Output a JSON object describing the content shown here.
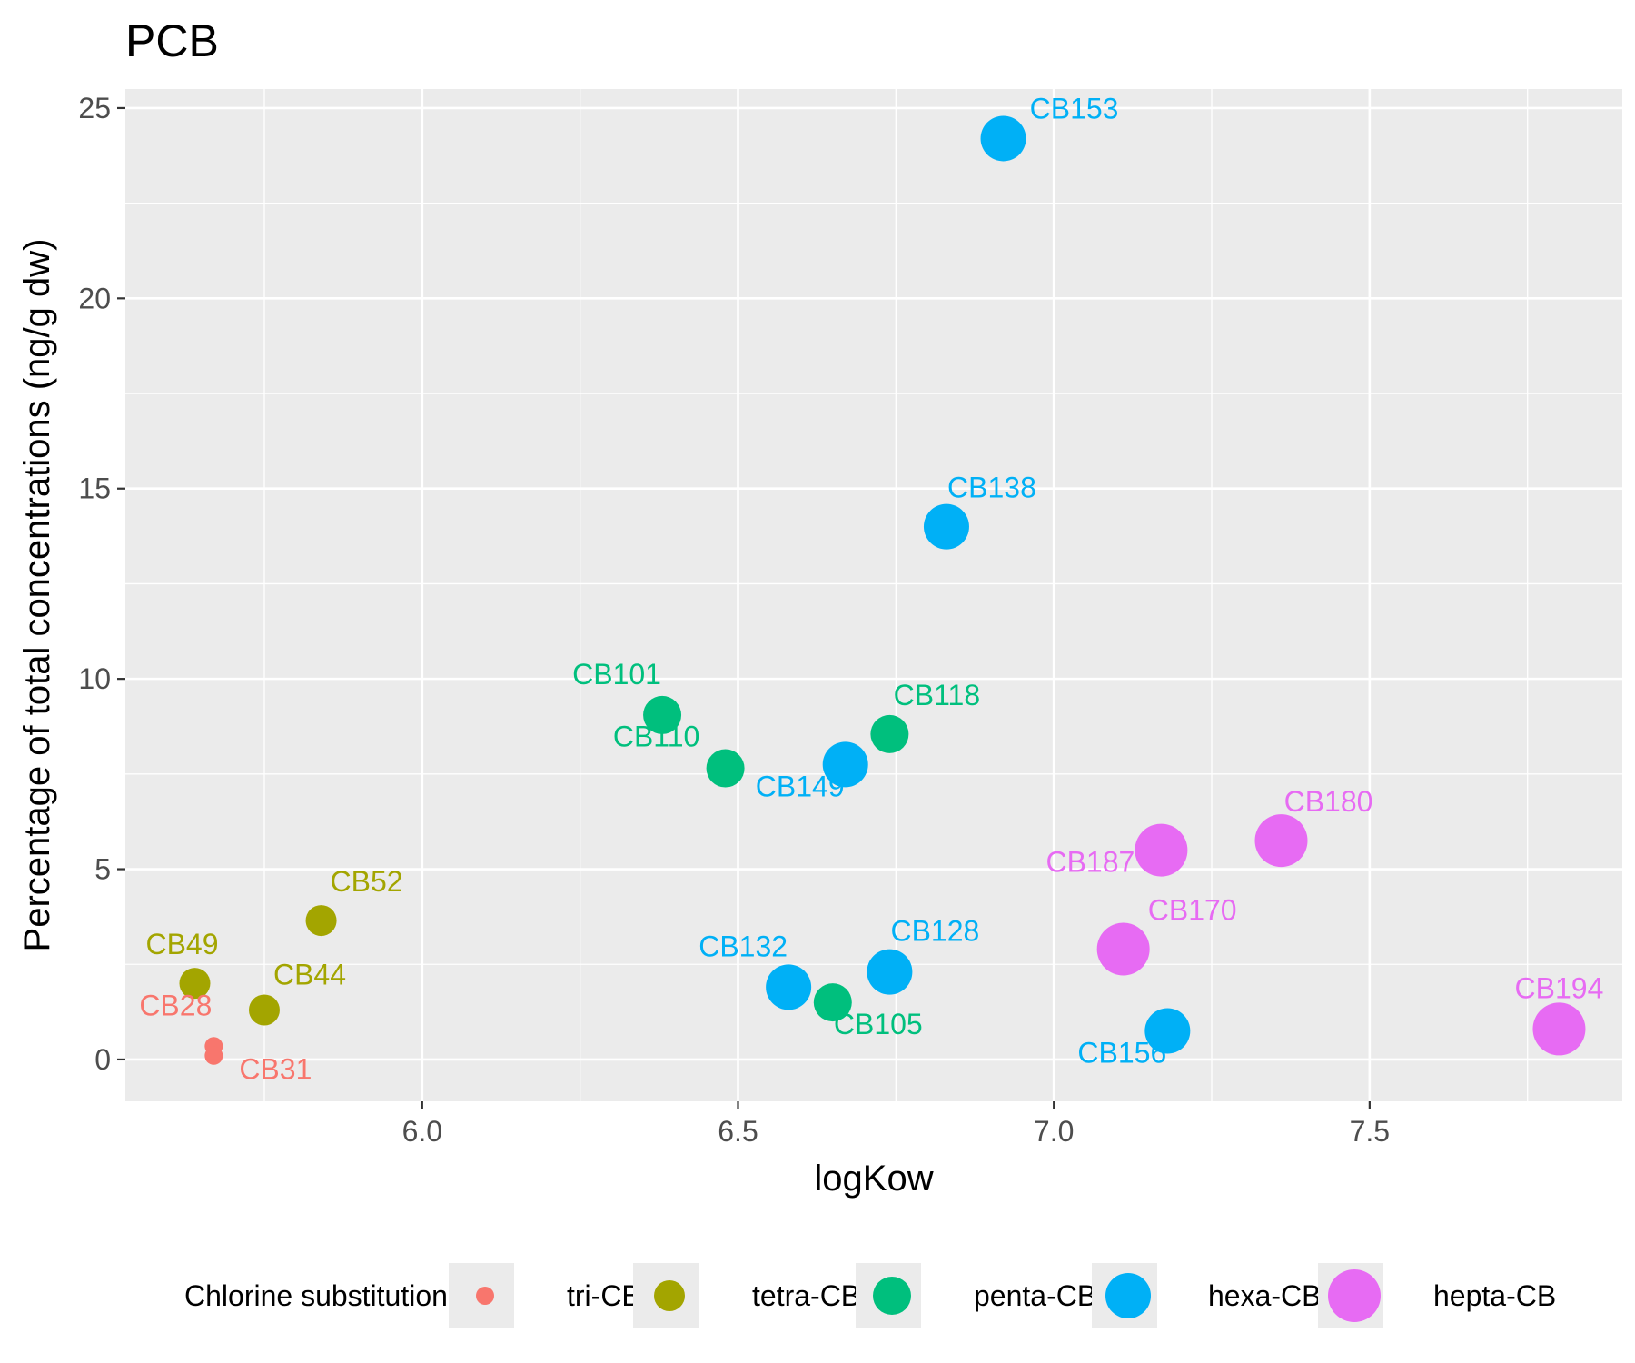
{
  "chart_data": {
    "type": "scatter",
    "title": "PCB",
    "xlabel": "logKow",
    "ylabel": "Percentage of total concentrations (ng/g dw)",
    "xlim": [
      5.53,
      7.9
    ],
    "ylim": [
      -1.1,
      25.5
    ],
    "x_ticks": [
      "6.0",
      "6.5",
      "7.0",
      "7.5"
    ],
    "y_ticks": [
      "0",
      "5",
      "10",
      "15",
      "20",
      "25"
    ],
    "grid": true,
    "legend": {
      "title": "Chlorine substitution",
      "placement": "bottom",
      "entries": [
        "tri-CB",
        "tetra-CB",
        "penta-CB",
        "hexa-CB",
        "hepta-CB"
      ]
    },
    "series": [
      {
        "name": "tri-CB",
        "color": "#F8766D",
        "points": [
          {
            "label": "CB28",
            "x": 5.67,
            "y": 0.35
          },
          {
            "label": "CB31",
            "x": 5.67,
            "y": 0.1
          }
        ]
      },
      {
        "name": "tetra-CB",
        "color": "#A3A500",
        "points": [
          {
            "label": "CB49",
            "x": 5.64,
            "y": 2.0
          },
          {
            "label": "CB44",
            "x": 5.75,
            "y": 1.3
          },
          {
            "label": "CB52",
            "x": 5.84,
            "y": 3.65
          }
        ]
      },
      {
        "name": "penta-CB",
        "color": "#00BF7D",
        "points": [
          {
            "label": "CB101",
            "x": 6.38,
            "y": 9.05
          },
          {
            "label": "CB110",
            "x": 6.48,
            "y": 7.65
          },
          {
            "label": "CB118",
            "x": 6.74,
            "y": 8.55
          },
          {
            "label": "CB105",
            "x": 6.65,
            "y": 1.5
          }
        ]
      },
      {
        "name": "hexa-CB",
        "color": "#00B0F6",
        "points": [
          {
            "label": "CB153",
            "x": 6.92,
            "y": 24.2
          },
          {
            "label": "CB138",
            "x": 6.83,
            "y": 14.0
          },
          {
            "label": "CB149",
            "x": 6.67,
            "y": 7.75
          },
          {
            "label": "CB132",
            "x": 6.58,
            "y": 1.9
          },
          {
            "label": "CB128",
            "x": 6.74,
            "y": 2.3
          },
          {
            "label": "CB156",
            "x": 7.18,
            "y": 0.75
          }
        ]
      },
      {
        "name": "hepta-CB",
        "color": "#E76BF3",
        "points": [
          {
            "label": "CB187",
            "x": 7.17,
            "y": 5.5
          },
          {
            "label": "CB180",
            "x": 7.36,
            "y": 5.75
          },
          {
            "label": "CB170",
            "x": 7.11,
            "y": 2.9
          },
          {
            "label": "CB194",
            "x": 7.8,
            "y": 0.8
          }
        ]
      }
    ]
  }
}
